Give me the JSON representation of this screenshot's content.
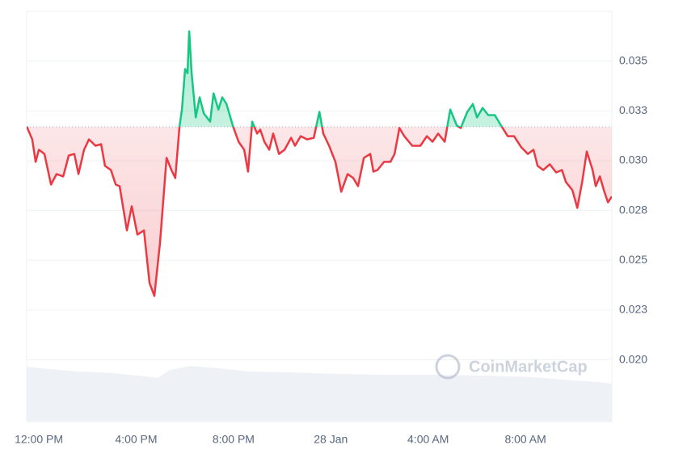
{
  "chart_data": {
    "type": "line",
    "watermark": "CoinMarketCap",
    "reference": 0.0317,
    "up_color": "#16c784",
    "down_color": "#ea3943",
    "grid": true,
    "xlim": [
      -0.5,
      23.55
    ],
    "xticks": [
      {
        "value": 0,
        "label": "12:00 PM"
      },
      {
        "value": 4,
        "label": "4:00 PM"
      },
      {
        "value": 8,
        "label": "8:00 PM"
      },
      {
        "value": 12,
        "label": "28 Jan"
      },
      {
        "value": 16,
        "label": "4:00 AM"
      },
      {
        "value": 20,
        "label": "8:00 AM"
      }
    ],
    "ylim": [
      0.0169,
      0.0375
    ],
    "yticks": [
      {
        "value": 0.02,
        "label": "0.020"
      },
      {
        "value": 0.0225,
        "label": "0.023"
      },
      {
        "value": 0.025,
        "label": "0.025"
      },
      {
        "value": 0.0275,
        "label": "0.028"
      },
      {
        "value": 0.03,
        "label": "0.030"
      },
      {
        "value": 0.0325,
        "label": "0.033"
      },
      {
        "value": 0.035,
        "label": "0.035"
      }
    ],
    "x": [
      -0.5,
      -0.27,
      -0.13,
      0,
      0.23,
      0.5,
      0.73,
      1.0,
      1.23,
      1.46,
      1.63,
      1.86,
      2.06,
      2.33,
      2.56,
      2.72,
      2.96,
      3.16,
      3.32,
      3.62,
      3.82,
      4.05,
      4.32,
      4.55,
      4.75,
      4.98,
      5.25,
      5.45,
      5.61,
      5.78,
      5.88,
      6.01,
      6.11,
      6.18,
      6.28,
      6.45,
      6.61,
      6.78,
      7.04,
      7.18,
      7.38,
      7.54,
      7.71,
      7.97,
      8.21,
      8.44,
      8.6,
      8.77,
      8.97,
      9.1,
      9.27,
      9.47,
      9.63,
      9.87,
      10.1,
      10.37,
      10.53,
      10.76,
      11.03,
      11.3,
      11.53,
      11.69,
      11.93,
      12.19,
      12.43,
      12.69,
      12.92,
      13.12,
      13.36,
      13.62,
      13.75,
      13.92,
      14.19,
      14.45,
      14.62,
      14.82,
      15.02,
      15.35,
      15.68,
      15.95,
      16.18,
      16.41,
      16.68,
      16.91,
      17.18,
      17.34,
      17.61,
      17.84,
      18.01,
      18.24,
      18.47,
      18.74,
      19.0,
      19.27,
      19.53,
      19.83,
      20.1,
      20.33,
      20.5,
      20.73,
      21.0,
      21.26,
      21.5,
      21.66,
      21.93,
      22.13,
      22.33,
      22.52,
      22.76,
      22.89,
      23.06,
      23.22,
      23.39,
      23.55
    ],
    "values": [
      0.03172,
      0.03107,
      0.02994,
      0.03055,
      0.03034,
      0.0288,
      0.02933,
      0.02921,
      0.03026,
      0.03034,
      0.02933,
      0.03055,
      0.03107,
      0.03075,
      0.03083,
      0.02974,
      0.02953,
      0.0288,
      0.02872,
      0.0265,
      0.02771,
      0.02629,
      0.0265,
      0.02386,
      0.02321,
      0.02589,
      0.03014,
      0.02953,
      0.02913,
      0.03172,
      0.03257,
      0.0346,
      0.03439,
      0.0365,
      0.03439,
      0.03217,
      0.03318,
      0.03237,
      0.03196,
      0.03338,
      0.03257,
      0.03318,
      0.03285,
      0.03176,
      0.03095,
      0.03055,
      0.02945,
      0.03196,
      0.03136,
      0.03156,
      0.03095,
      0.03055,
      0.03136,
      0.03034,
      0.03055,
      0.03115,
      0.03075,
      0.03123,
      0.03107,
      0.03115,
      0.03245,
      0.03136,
      0.03075,
      0.02994,
      0.02844,
      0.02933,
      0.02913,
      0.02872,
      0.03014,
      0.03034,
      0.02945,
      0.02953,
      0.02994,
      0.02994,
      0.03034,
      0.03164,
      0.03123,
      0.03075,
      0.03075,
      0.03123,
      0.03095,
      0.03136,
      0.03095,
      0.03257,
      0.03176,
      0.03164,
      0.03245,
      0.03285,
      0.03217,
      0.03265,
      0.03229,
      0.03229,
      0.03176,
      0.03123,
      0.03123,
      0.03067,
      0.03034,
      0.03055,
      0.02974,
      0.02953,
      0.02982,
      0.02941,
      0.02953,
      0.02893,
      0.02852,
      0.02763,
      0.02893,
      0.03046,
      0.02953,
      0.02872,
      0.02921,
      0.02852,
      0.02791,
      0.0282
    ]
  }
}
